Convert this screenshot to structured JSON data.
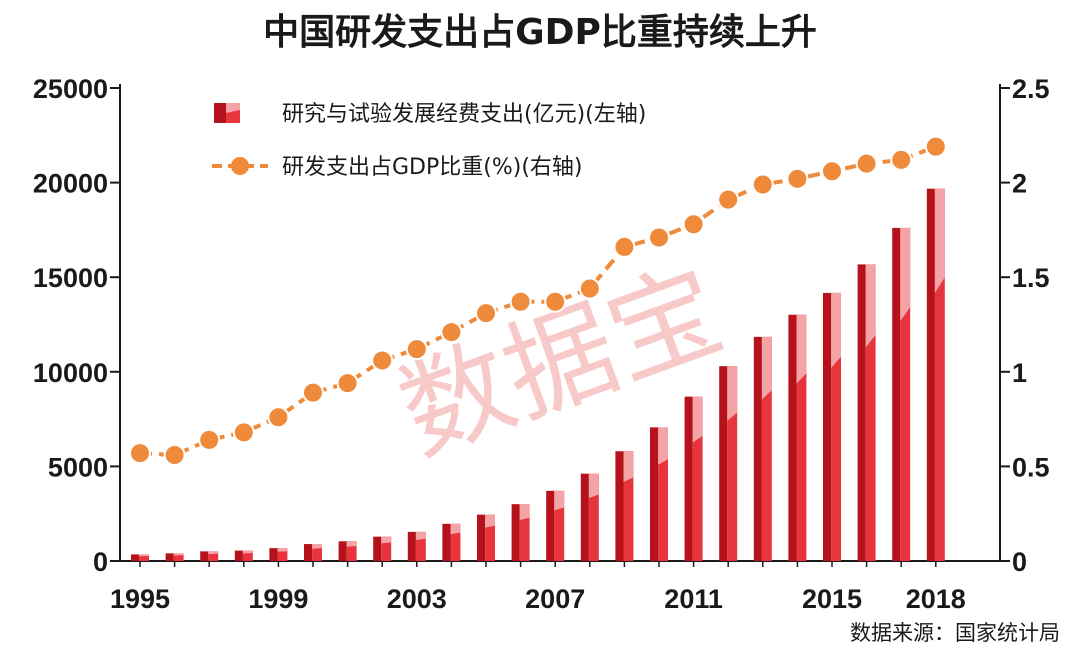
{
  "source_note": "数据来源：国家统计局",
  "watermark": "数据宝",
  "colors": {
    "bar_dark": "#b5121b",
    "bar_light": "#e8343c",
    "bar_highlight": "#f4a3a6",
    "line": "#ef8a3a",
    "marker": "#ef8a3a",
    "axis": "#1a1a1a"
  },
  "chart_data": {
    "type": "bar+line",
    "title": "中国研发支出占GDP比重持续上升",
    "x": [
      1995,
      1996,
      1997,
      1998,
      1999,
      2000,
      2001,
      2002,
      2003,
      2004,
      2005,
      2006,
      2007,
      2008,
      2009,
      2010,
      2011,
      2012,
      2013,
      2014,
      2015,
      2016,
      2017,
      2018
    ],
    "x_tick_labels": [
      "1995",
      "1999",
      "2003",
      "2007",
      "2011",
      "2015",
      "2018"
    ],
    "y_left": {
      "lim": [
        0,
        25000
      ],
      "ticks": [
        "0",
        "5000",
        "10000",
        "15000",
        "20000",
        "25000"
      ]
    },
    "y_right": {
      "lim": [
        0,
        2.5
      ],
      "ticks": [
        "0",
        "0.5",
        "1",
        "1.5",
        "2",
        "2.5"
      ]
    },
    "legend_placement": "top-left",
    "grid": false,
    "series": [
      {
        "name": "研究与试验发展经费支出(亿元)(左轴)",
        "type": "bar",
        "axis": "left",
        "values": [
          349,
          404,
          509,
          551,
          679,
          896,
          1042,
          1288,
          1540,
          1966,
          2450,
          3003,
          3710,
          4616,
          5802,
          7063,
          8687,
          10298,
          11847,
          13016,
          14170,
          15677,
          17606,
          19678
        ]
      },
      {
        "name": "研发支出占GDP比重(%)(右轴)",
        "type": "line",
        "axis": "right",
        "values": [
          0.57,
          0.56,
          0.64,
          0.68,
          0.76,
          0.89,
          0.94,
          1.06,
          1.12,
          1.21,
          1.31,
          1.37,
          1.37,
          1.44,
          1.66,
          1.71,
          1.78,
          1.91,
          1.99,
          2.02,
          2.06,
          2.1,
          2.12,
          2.19
        ]
      }
    ]
  }
}
